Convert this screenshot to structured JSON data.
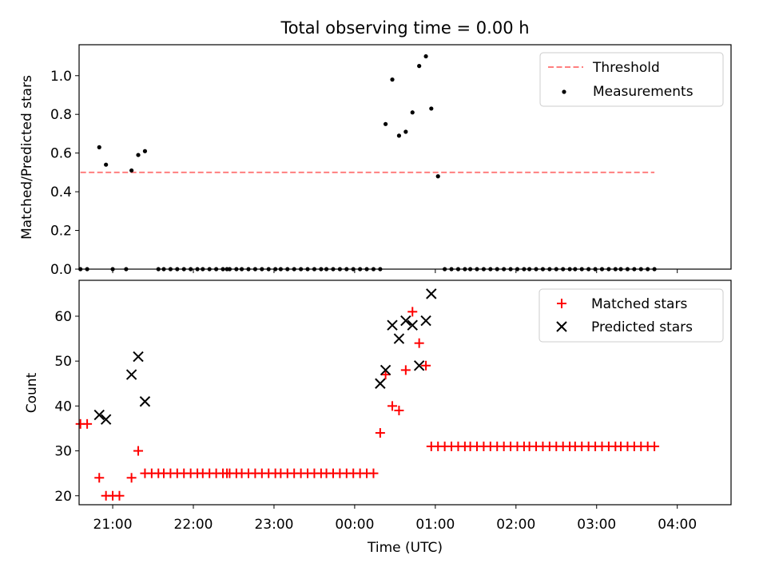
{
  "chart_data": [
    {
      "type": "scatter",
      "title": "Total observing time = 0.00 h",
      "xlabel": "",
      "ylabel": "Matched/Predicted stars",
      "xlim": [
        -205,
        280
      ],
      "ylim": [
        0,
        1.16
      ],
      "yticks": [
        0.0,
        0.2,
        0.4,
        0.6,
        0.8,
        1.0
      ],
      "ytick_labels": [
        "0.0",
        "0.2",
        "0.4",
        "0.6",
        "0.8",
        "1.0"
      ],
      "legend_position": "upper right",
      "legend": [
        "Threshold",
        "Measurements"
      ],
      "threshold": {
        "name": "Threshold",
        "y": 0.5,
        "x_range": [
          -204,
          223
        ],
        "color": "#ff7f7f",
        "style": "dashed"
      },
      "series": [
        {
          "name": "Measurements",
          "color": "#000000",
          "x": [
            -204,
            -199,
            -190,
            -185,
            -180,
            -170,
            -166,
            -161,
            -156,
            -146,
            -142,
            -137,
            -132,
            -127,
            -122,
            -117,
            -113,
            -108,
            -103,
            -98,
            -95,
            -93,
            -88,
            -84,
            -79,
            -74,
            -69,
            -64,
            -59,
            -55,
            -50,
            -45,
            -40,
            -35,
            -30,
            -25,
            -21,
            -16,
            -11,
            -6,
            -1,
            4,
            9,
            14,
            19,
            23,
            28,
            33,
            38,
            43,
            48,
            53,
            57,
            62,
            67,
            72,
            77,
            82,
            86,
            91,
            96,
            101,
            106,
            111,
            116,
            121,
            126,
            130,
            135,
            140,
            145,
            150,
            155,
            160,
            164,
            169,
            174,
            179,
            184,
            189,
            194,
            198,
            203,
            208,
            213,
            218,
            223
          ],
          "y": [
            0,
            0,
            0.63,
            0.54,
            0,
            0,
            0.51,
            0.59,
            0.61,
            0,
            0,
            0,
            0,
            0,
            0,
            0,
            0,
            0,
            0,
            0,
            0,
            0,
            0,
            0,
            0,
            0,
            0,
            0,
            0,
            0,
            0,
            0,
            0,
            0,
            0,
            0,
            0,
            0,
            0,
            0,
            0,
            0,
            0,
            0,
            0,
            0.75,
            0.98,
            0.69,
            0.71,
            0.81,
            1.05,
            1.1,
            0.83,
            0.48,
            0,
            0,
            0,
            0,
            0,
            0,
            0,
            0,
            0,
            0,
            0,
            0,
            0,
            0,
            0,
            0,
            0,
            0,
            0,
            0,
            0,
            0,
            0,
            0,
            0,
            0,
            0,
            0,
            0,
            0,
            0,
            0,
            0
          ]
        }
      ]
    },
    {
      "type": "scatter",
      "title": "",
      "xlabel": "Time (UTC)",
      "ylabel": "Count",
      "xlim": [
        -205,
        280
      ],
      "ylim": [
        18,
        68
      ],
      "yticks": [
        20,
        30,
        40,
        50,
        60
      ],
      "ytick_labels": [
        "20",
        "30",
        "40",
        "50",
        "60"
      ],
      "xticks": [
        -180,
        -120,
        -60,
        0,
        60,
        120,
        180,
        240
      ],
      "xtick_labels": [
        "21:00",
        "22:00",
        "23:00",
        "00:00",
        "01:00",
        "02:00",
        "03:00",
        "04:00"
      ],
      "legend_position": "upper right",
      "legend": [
        "Matched stars",
        "Predicted stars"
      ],
      "series": [
        {
          "name": "Matched stars",
          "color": "#ff0000",
          "marker": "+",
          "x": [
            -204,
            -199,
            -190,
            -185,
            -180,
            -175,
            -166,
            -161,
            -156,
            -151,
            -146,
            -142,
            -137,
            -132,
            -127,
            -122,
            -117,
            -113,
            -108,
            -103,
            -98,
            -95,
            -93,
            -88,
            -84,
            -79,
            -74,
            -69,
            -64,
            -59,
            -55,
            -50,
            -45,
            -40,
            -35,
            -30,
            -25,
            -21,
            -16,
            -11,
            -6,
            -1,
            4,
            9,
            14,
            19,
            23,
            28,
            33,
            38,
            43,
            48,
            53,
            57,
            62,
            67,
            72,
            77,
            82,
            86,
            91,
            96,
            101,
            106,
            111,
            116,
            121,
            126,
            130,
            135,
            140,
            145,
            150,
            155,
            160,
            164,
            169,
            174,
            179,
            184,
            189,
            194,
            198,
            203,
            208,
            213,
            218,
            223
          ],
          "y": [
            36,
            36,
            24,
            20,
            20,
            20,
            24,
            30,
            25,
            25,
            25,
            25,
            25,
            25,
            25,
            25,
            25,
            25,
            25,
            25,
            25,
            25,
            25,
            25,
            25,
            25,
            25,
            25,
            25,
            25,
            25,
            25,
            25,
            25,
            25,
            25,
            25,
            25,
            25,
            25,
            25,
            25,
            25,
            25,
            25,
            34,
            47,
            40,
            39,
            48,
            61,
            54,
            49,
            31,
            31,
            31,
            31,
            31,
            31,
            31,
            31,
            31,
            31,
            31,
            31,
            31,
            31,
            31,
            31,
            31,
            31,
            31,
            31,
            31,
            31,
            31,
            31,
            31,
            31,
            31,
            31,
            31,
            31,
            31,
            31,
            31,
            31,
            31
          ]
        },
        {
          "name": "Predicted stars",
          "color": "#000000",
          "marker": "x",
          "x": [
            -190,
            -185,
            -166,
            -161,
            -156,
            19,
            23,
            28,
            33,
            38,
            43,
            48,
            53,
            57
          ],
          "y": [
            38,
            37,
            47,
            51,
            41,
            45,
            48,
            58,
            55,
            59,
            58,
            49,
            59,
            65
          ]
        }
      ]
    }
  ]
}
